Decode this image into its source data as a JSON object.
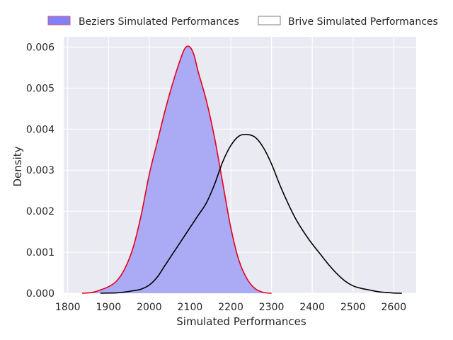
{
  "chart_data": {
    "type": "area",
    "xlabel": "Simulated Performances",
    "ylabel": "Density",
    "xlim": [
      1790,
      2655
    ],
    "ylim": [
      0,
      0.00625
    ],
    "xticks": [
      1800,
      1900,
      2000,
      2100,
      2200,
      2300,
      2400,
      2500,
      2600
    ],
    "yticks": [
      0.0,
      0.001,
      0.002,
      0.003,
      0.004,
      0.005,
      0.006
    ],
    "ytick_labels": [
      "0.000",
      "0.001",
      "0.002",
      "0.003",
      "0.004",
      "0.005",
      "0.006"
    ],
    "grid": true,
    "legend_placement": "top-center",
    "series": [
      {
        "name": "Beziers Simulated Performances",
        "fill": "#aaaaf5",
        "legend_fill": "#8080f8",
        "stroke": "#e8001c",
        "legend_stroke": "#d45a7a",
        "x": [
          1835,
          1860,
          1880,
          1900,
          1920,
          1940,
          1960,
          1980,
          2000,
          2020,
          2040,
          2060,
          2080,
          2090,
          2100,
          2110,
          2120,
          2140,
          2160,
          2180,
          2200,
          2220,
          2240,
          2260,
          2280,
          2300
        ],
        "y": [
          0.0,
          2e-05,
          8e-05,
          0.00016,
          0.0003,
          0.0006,
          0.0011,
          0.0019,
          0.0029,
          0.0037,
          0.0045,
          0.0052,
          0.0058,
          0.006,
          0.006,
          0.0058,
          0.0054,
          0.0047,
          0.0038,
          0.0027,
          0.0016,
          0.0008,
          0.00035,
          0.00011,
          2e-05,
          0.0
        ]
      },
      {
        "name": "Brive Simulated Performances",
        "fill": "none",
        "legend_fill": "#ffffff",
        "stroke": "#000000",
        "legend_stroke": "#7f7f7f",
        "x": [
          1880,
          1900,
          1920,
          1940,
          1960,
          1980,
          2000,
          2020,
          2040,
          2060,
          2080,
          2100,
          2120,
          2140,
          2160,
          2180,
          2200,
          2220,
          2240,
          2260,
          2280,
          2300,
          2320,
          2340,
          2360,
          2380,
          2400,
          2420,
          2440,
          2460,
          2480,
          2500,
          2520,
          2540,
          2560,
          2580,
          2600,
          2620
        ],
        "y": [
          0.0,
          5e-06,
          1e-05,
          3e-05,
          6e-05,
          0.0001,
          0.0002,
          0.0004,
          0.0007,
          0.001,
          0.0013,
          0.0016,
          0.0019,
          0.0022,
          0.00265,
          0.0032,
          0.0036,
          0.00383,
          0.00387,
          0.0038,
          0.00355,
          0.00315,
          0.00265,
          0.0022,
          0.0018,
          0.00148,
          0.0012,
          0.00095,
          0.0007,
          0.00048,
          0.0003,
          0.00018,
          0.00012,
          8e-05,
          4e-05,
          2e-05,
          5e-06,
          0.0
        ]
      }
    ]
  }
}
